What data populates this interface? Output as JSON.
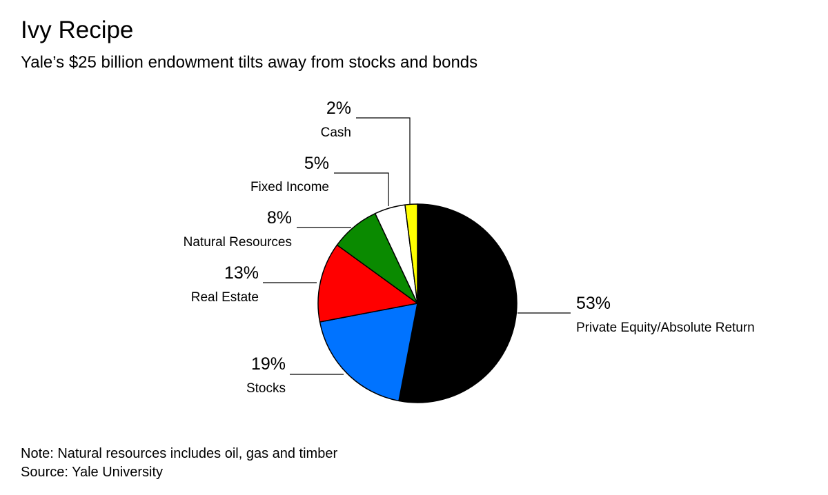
{
  "title": "Ivy Recipe",
  "subtitle": "Yale’s $25 billion endowment tilts away from stocks and bonds",
  "chart_data": {
    "type": "pie",
    "start_angle_deg": 0,
    "direction": "clockwise",
    "slices": [
      {
        "label": "Private Equity/Absolute Return",
        "value": 53,
        "value_label": "53%",
        "color": "#000000"
      },
      {
        "label": "Stocks",
        "value": 19,
        "value_label": "19%",
        "color": "#0073ff"
      },
      {
        "label": "Real Estate",
        "value": 13,
        "value_label": "13%",
        "color": "#ff0000"
      },
      {
        "label": "Natural Resources",
        "value": 8,
        "value_label": "8%",
        "color": "#0a8a00"
      },
      {
        "label": "Fixed Income",
        "value": 5,
        "value_label": "5%",
        "color": "#ffffff"
      },
      {
        "label": "Cash",
        "value": 2,
        "value_label": "2%",
        "color": "#ffff00"
      }
    ]
  },
  "footer": {
    "note": "Note: Natural resources includes oil, gas and timber",
    "source": "Source: Yale University"
  }
}
